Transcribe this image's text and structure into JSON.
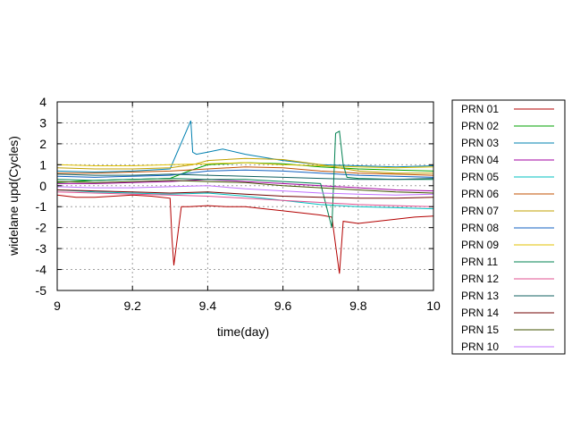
{
  "chart_data": {
    "type": "line",
    "xlabel": "time(day)",
    "ylabel": "widelane upd(Cycles)",
    "xlim": [
      9,
      10
    ],
    "ylim": [
      -5,
      4
    ],
    "x_ticks": [
      "9",
      "9.2",
      "9.4",
      "9.6",
      "9.8",
      "10"
    ],
    "y_ticks": [
      "4",
      "3",
      "2",
      "1",
      "0",
      "-1",
      "-2",
      "-3",
      "-4",
      "-5"
    ],
    "grid": true,
    "legend_position": "right",
    "series": [
      {
        "name": "PRN 01",
        "color": "#b30000",
        "x": [
          9.0,
          9.05,
          9.1,
          9.15,
          9.2,
          9.25,
          9.3,
          9.305,
          9.31,
          9.33,
          9.35,
          9.4,
          9.45,
          9.5,
          9.55,
          9.6,
          9.65,
          9.7,
          9.73,
          9.75,
          9.76,
          9.8,
          9.85,
          9.9,
          9.95,
          10.0
        ],
        "y": [
          -0.45,
          -0.55,
          -0.55,
          -0.5,
          -0.45,
          -0.5,
          -0.6,
          -2.5,
          -3.8,
          -1.0,
          -1.0,
          -0.95,
          -1.0,
          -1.0,
          -1.1,
          -1.2,
          -1.3,
          -1.4,
          -1.5,
          -4.2,
          -1.7,
          -1.8,
          -1.7,
          -1.6,
          -1.5,
          -1.45
        ]
      },
      {
        "name": "PRN 02",
        "color": "#00a000",
        "x": [
          9.0,
          9.1,
          9.2,
          9.3,
          9.35,
          9.4,
          9.5,
          9.6,
          9.7,
          9.8,
          9.9,
          10.0
        ],
        "y": [
          0.15,
          0.25,
          0.3,
          0.35,
          0.7,
          1.0,
          1.1,
          1.05,
          0.9,
          0.8,
          0.75,
          0.7
        ]
      },
      {
        "name": "PRN 03",
        "color": "#0080b0",
        "x": [
          9.0,
          9.1,
          9.2,
          9.3,
          9.355,
          9.36,
          9.37,
          9.4,
          9.44,
          9.5,
          9.6,
          9.7,
          9.8,
          9.9,
          10.0
        ],
        "y": [
          0.7,
          0.65,
          0.7,
          0.8,
          3.1,
          1.6,
          1.5,
          1.6,
          1.75,
          1.5,
          1.2,
          1.0,
          0.95,
          0.9,
          0.95
        ]
      },
      {
        "name": "PRN 04",
        "color": "#a000a0",
        "x": [
          9.0,
          9.1,
          9.2,
          9.3,
          9.4,
          9.5,
          9.6,
          9.7,
          9.8,
          9.9,
          10.0
        ],
        "y": [
          0.1,
          0.1,
          0.15,
          0.2,
          0.3,
          0.2,
          0.1,
          0.0,
          -0.1,
          -0.2,
          -0.25
        ]
      },
      {
        "name": "PRN 05",
        "color": "#00c0c0",
        "x": [
          9.0,
          9.1,
          9.2,
          9.3,
          9.4,
          9.5,
          9.6,
          9.7,
          9.8,
          9.9,
          10.0
        ],
        "y": [
          -0.2,
          -0.3,
          -0.35,
          -0.4,
          -0.35,
          -0.5,
          -0.7,
          -0.9,
          -1.0,
          -1.05,
          -1.1
        ]
      },
      {
        "name": "PRN 06",
        "color": "#c05000",
        "x": [
          9.0,
          9.1,
          9.2,
          9.3,
          9.4,
          9.5,
          9.6,
          9.7,
          9.8,
          9.9,
          10.0
        ],
        "y": [
          0.6,
          0.6,
          0.65,
          0.7,
          0.8,
          0.9,
          0.85,
          0.7,
          0.6,
          0.55,
          0.5
        ]
      },
      {
        "name": "PRN 07",
        "color": "#c0a000",
        "x": [
          9.0,
          9.1,
          9.2,
          9.3,
          9.36,
          9.4,
          9.5,
          9.6,
          9.7,
          9.8,
          9.9,
          10.0
        ],
        "y": [
          0.85,
          0.8,
          0.8,
          0.85,
          1.0,
          1.2,
          1.3,
          1.25,
          1.0,
          0.7,
          0.6,
          0.6
        ]
      },
      {
        "name": "PRN 08",
        "color": "#1060c0",
        "x": [
          9.0,
          9.1,
          9.2,
          9.3,
          9.35,
          9.4,
          9.5,
          9.6,
          9.7,
          9.8,
          9.9,
          10.0
        ],
        "y": [
          0.45,
          0.4,
          0.45,
          0.5,
          0.6,
          0.7,
          0.75,
          0.7,
          0.6,
          0.5,
          0.45,
          0.4
        ]
      },
      {
        "name": "PRN 09",
        "color": "#e0c000",
        "x": [
          9.0,
          9.1,
          9.2,
          9.3,
          9.4,
          9.5,
          9.6,
          9.7,
          9.8,
          9.9,
          10.0
        ],
        "y": [
          1.0,
          0.95,
          0.95,
          1.0,
          1.05,
          1.1,
          1.0,
          0.95,
          0.9,
          0.85,
          0.9
        ]
      },
      {
        "name": "PRN 11",
        "color": "#008050",
        "x": [
          9.0,
          9.1,
          9.2,
          9.3,
          9.4,
          9.5,
          9.6,
          9.7,
          9.73,
          9.74,
          9.75,
          9.76,
          9.77,
          9.8,
          9.9,
          10.0
        ],
        "y": [
          0.3,
          0.25,
          0.3,
          0.35,
          0.3,
          0.3,
          0.2,
          0.1,
          -2.0,
          2.5,
          2.6,
          1.0,
          0.4,
          0.35,
          0.3,
          0.3
        ]
      },
      {
        "name": "PRN 12",
        "color": "#e05090",
        "x": [
          9.0,
          9.1,
          9.2,
          9.3,
          9.4,
          9.5,
          9.6,
          9.7,
          9.8,
          9.9,
          10.0
        ],
        "y": [
          -0.3,
          -0.35,
          -0.4,
          -0.45,
          -0.5,
          -0.6,
          -0.7,
          -0.8,
          -0.9,
          -0.95,
          -1.0
        ]
      },
      {
        "name": "PRN 13",
        "color": "#106060",
        "x": [
          9.0,
          9.1,
          9.2,
          9.3,
          9.4,
          9.5,
          9.6,
          9.7,
          9.8,
          9.9,
          10.0
        ],
        "y": [
          0.55,
          0.5,
          0.5,
          0.55,
          0.5,
          0.45,
          0.4,
          0.35,
          0.3,
          0.3,
          0.35
        ]
      },
      {
        "name": "PRN 14",
        "color": "#700000",
        "x": [
          9.0,
          9.1,
          9.2,
          9.3,
          9.4,
          9.5,
          9.6,
          9.7,
          9.8,
          9.9,
          10.0
        ],
        "y": [
          -0.2,
          -0.25,
          -0.3,
          -0.35,
          -0.3,
          -0.4,
          -0.5,
          -0.55,
          -0.6,
          -0.6,
          -0.55
        ]
      },
      {
        "name": "PRN 15",
        "color": "#405000",
        "x": [
          9.0,
          9.1,
          9.2,
          9.3,
          9.4,
          9.5,
          9.6,
          9.7,
          9.8,
          9.9,
          10.0
        ],
        "y": [
          0.2,
          0.15,
          0.2,
          0.25,
          0.2,
          0.15,
          0.0,
          -0.1,
          -0.2,
          -0.3,
          -0.35
        ]
      },
      {
        "name": "PRN 10",
        "color": "#c070ff",
        "x": [
          9.0,
          9.1,
          9.2,
          9.3,
          9.4,
          9.5,
          9.6,
          9.7,
          9.8,
          9.9,
          10.0
        ],
        "y": [
          -0.05,
          -0.1,
          -0.1,
          -0.05,
          0.0,
          -0.15,
          -0.25,
          -0.35,
          -0.4,
          -0.45,
          -0.4
        ]
      }
    ]
  }
}
